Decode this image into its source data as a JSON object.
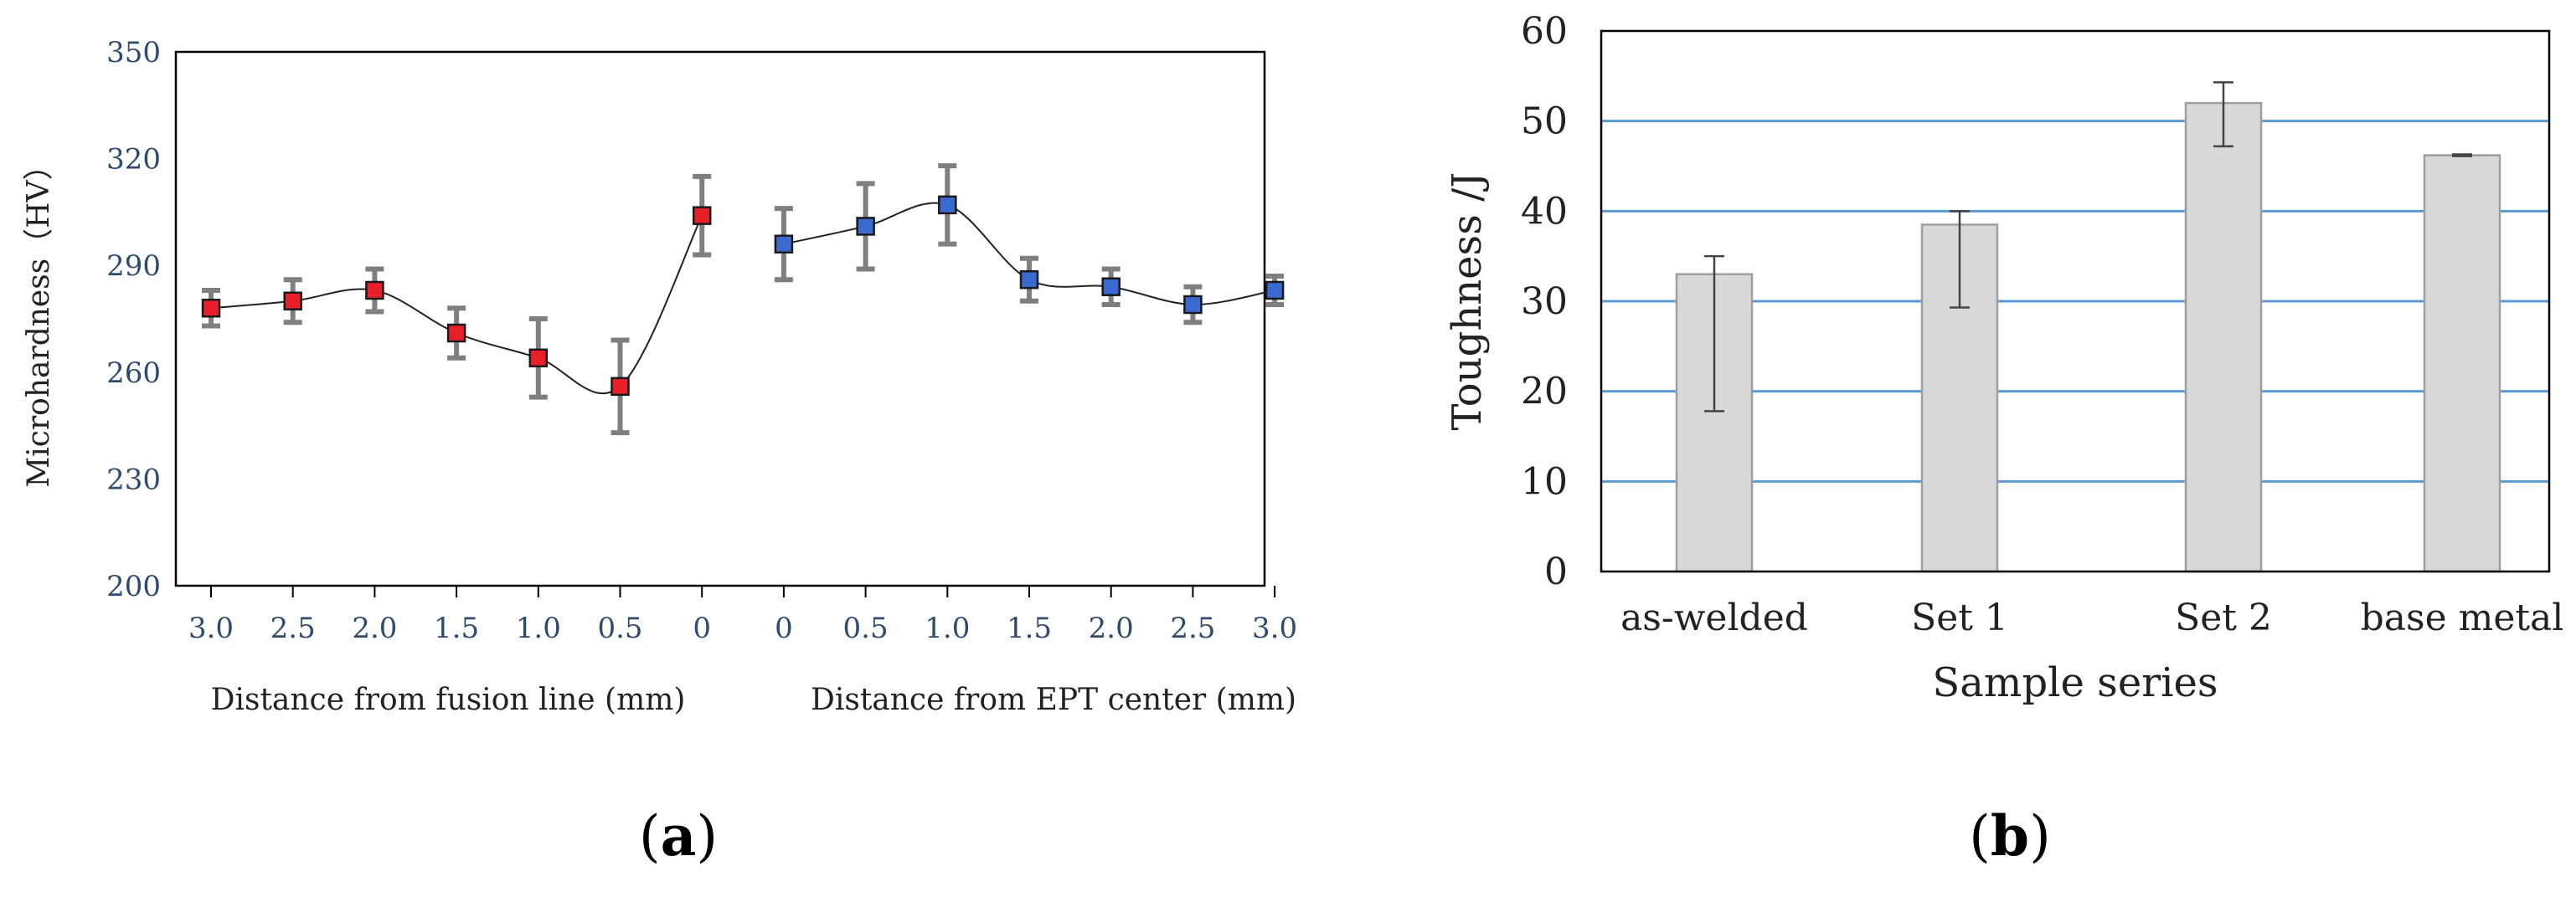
{
  "chart_data": [
    {
      "type": "line",
      "panel_label": "(a)",
      "ylabel": "Microhardness（HV）",
      "xlabel_left": "Distance from fusion line (mm)",
      "xlabel_right": "Distance from EPT center (mm)",
      "ylim": [
        200,
        350
      ],
      "yticks": [
        200,
        230,
        260,
        290,
        320,
        350
      ],
      "x_tick_labels": [
        "3.0",
        "2.5",
        "2.0",
        "1.5",
        "1.0",
        "0.5",
        "0",
        "0",
        "0.5",
        "1.0",
        "1.5",
        "2.0",
        "2.5",
        "3.0"
      ],
      "grid": false,
      "series": [
        {
          "region": "fusion-line",
          "color": "#e8202a",
          "points": [
            {
              "x": "3.0",
              "y": 278,
              "err": 5
            },
            {
              "x": "2.5",
              "y": 280,
              "err": 6
            },
            {
              "x": "2.0",
              "y": 283,
              "err": 6
            },
            {
              "x": "1.5",
              "y": 271,
              "err": 7
            },
            {
              "x": "1.0",
              "y": 264,
              "err": 11
            },
            {
              "x": "0.5",
              "y": 256,
              "err": 13
            },
            {
              "x": "0",
              "y": 304,
              "err": 11
            }
          ]
        },
        {
          "region": "EPT-center",
          "color": "#3a6ad0",
          "points": [
            {
              "x": "0",
              "y": 296,
              "err": 10
            },
            {
              "x": "0.5",
              "y": 301,
              "err": 12
            },
            {
              "x": "1.0",
              "y": 307,
              "err": 11
            },
            {
              "x": "1.5",
              "y": 286,
              "err": 6
            },
            {
              "x": "2.0",
              "y": 284,
              "err": 5
            },
            {
              "x": "2.5",
              "y": 279,
              "err": 5
            },
            {
              "x": "3.0",
              "y": 283,
              "err": 4
            }
          ]
        }
      ]
    },
    {
      "type": "bar",
      "panel_label": "(b)",
      "xlabel": "Sample series",
      "ylabel": "Toughness /J",
      "ylim": [
        0,
        60
      ],
      "yticks": [
        0,
        10,
        20,
        30,
        40,
        50,
        60
      ],
      "grid": true,
      "grid_color": "#5b9bd5",
      "bar_color": "#d9d9d9",
      "categories": [
        "as-welded",
        "Set 1",
        "Set 2",
        "base metal"
      ],
      "values": [
        33,
        38.5,
        52,
        46.2
      ],
      "error_high": [
        35,
        40,
        54.3,
        46.3
      ],
      "error_low": [
        17.8,
        29.3,
        47.2,
        46.1
      ]
    }
  ]
}
